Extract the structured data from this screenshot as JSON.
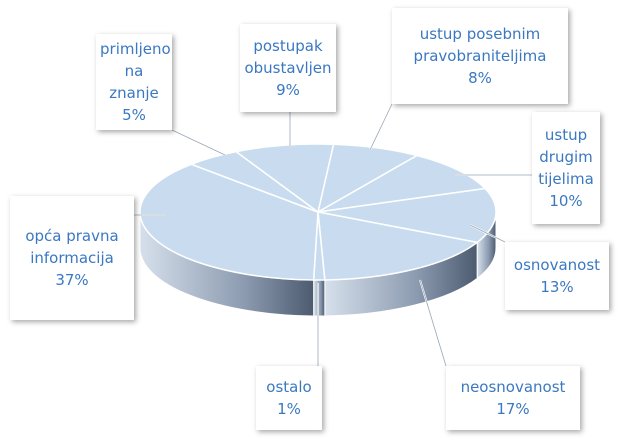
{
  "chart_data": {
    "type": "pie",
    "categories": [
      "ustup posebnim pravobraniteljima",
      "ustup drugim tijelima",
      "osnovanost",
      "neosnovanost",
      "ostalo",
      "opća pravna informacija",
      "primljeno na znanje",
      "postupak obustavljen"
    ],
    "values": [
      8,
      10,
      13,
      17,
      1,
      37,
      5,
      9
    ],
    "value_labels": [
      "8%",
      "10%",
      "13%",
      "17%",
      "1%",
      "37%",
      "5%",
      "9%"
    ],
    "color": "#c9dcef"
  }
}
